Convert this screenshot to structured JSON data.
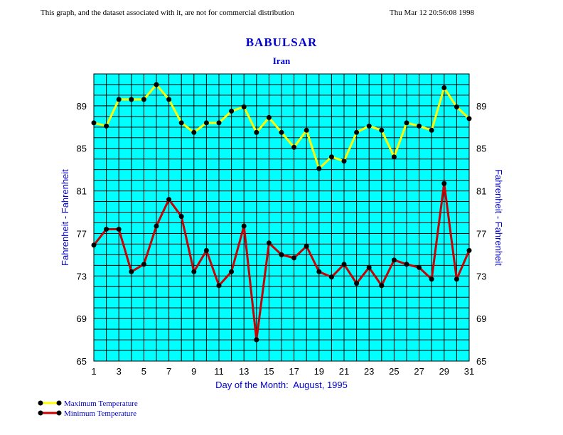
{
  "header": {
    "disclaimer": "This graph, and the dataset associated with it, are not for commercial distribution",
    "timestamp": "Thu Mar 12 20:56:08 1998"
  },
  "chart_data": {
    "type": "line",
    "title": "BABULSAR",
    "subtitle": "Iran",
    "xlabel": "Day of the Month:  August, 1995",
    "ylabel_left": "Fahrenheit - Fahrenheit",
    "ylabel_right": "Fahrenheit - Fahrenheit",
    "xlim": [
      1,
      31
    ],
    "ylim": [
      65,
      92
    ],
    "x_ticks": [
      "1",
      "3",
      "5",
      "7",
      "9",
      "11",
      "13",
      "15",
      "17",
      "19",
      "21",
      "23",
      "25",
      "27",
      "29",
      "31"
    ],
    "y_ticks": [
      "65",
      "69",
      "73",
      "77",
      "81",
      "85",
      "89"
    ],
    "grid": true,
    "plot_background": "#00ffff",
    "x": [
      1,
      2,
      3,
      4,
      5,
      6,
      7,
      8,
      9,
      10,
      11,
      12,
      13,
      14,
      15,
      16,
      17,
      18,
      19,
      20,
      21,
      22,
      23,
      24,
      25,
      26,
      27,
      28,
      29,
      30,
      31
    ],
    "series": [
      {
        "name": "Maximum Temperature",
        "color": "#ffff00",
        "values": [
          87.4,
          87.1,
          89.6,
          89.6,
          89.6,
          91.0,
          89.6,
          87.4,
          86.5,
          87.4,
          87.4,
          88.5,
          88.9,
          86.5,
          87.9,
          86.5,
          85.1,
          86.7,
          83.1,
          84.2,
          83.8,
          86.5,
          87.1,
          86.7,
          84.2,
          87.4,
          87.1,
          86.7,
          90.7,
          88.9,
          87.8
        ]
      },
      {
        "name": "Minimum Temperature",
        "color": "#cc0000",
        "values": [
          75.9,
          77.4,
          77.4,
          73.4,
          74.1,
          77.7,
          80.2,
          78.6,
          73.4,
          75.4,
          72.1,
          73.4,
          77.7,
          67.0,
          76.1,
          75.0,
          74.7,
          75.8,
          73.4,
          72.9,
          74.1,
          72.3,
          73.8,
          72.1,
          74.5,
          74.1,
          73.8,
          72.7,
          81.7,
          72.7,
          75.4
        ]
      }
    ],
    "legend": {
      "placement": "bottom-left",
      "entries": [
        "Maximum Temperature",
        "Minimum Temperature"
      ]
    }
  }
}
